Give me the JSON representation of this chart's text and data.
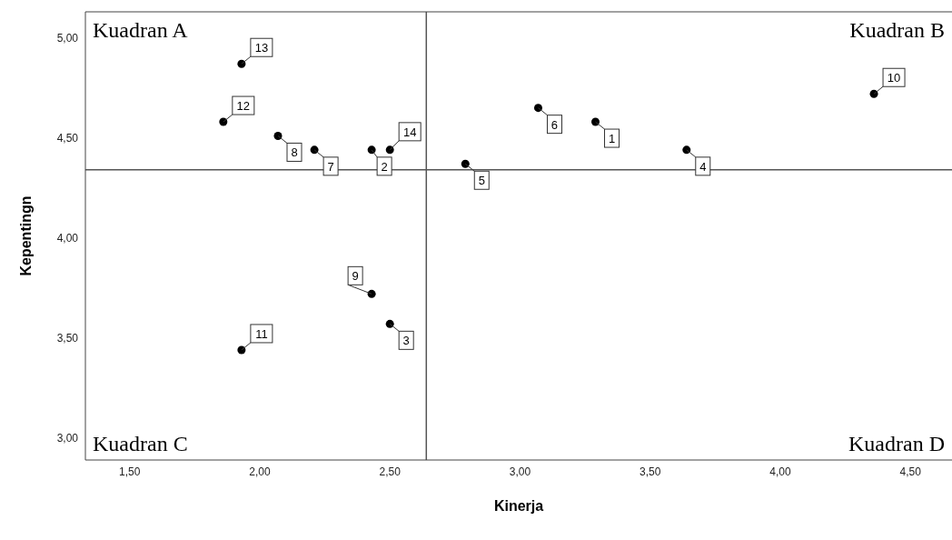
{
  "chart_data": {
    "type": "scatter",
    "xlabel": "Kinerja",
    "ylabel": "Kepentingn",
    "x": [
      3.29,
      2.43,
      2.5,
      3.64,
      2.79,
      3.07,
      2.21,
      2.07,
      2.43,
      4.36,
      1.93,
      1.86,
      1.93,
      2.5
    ],
    "values": [
      4.58,
      4.44,
      3.57,
      4.44,
      4.37,
      4.65,
      4.44,
      4.51,
      3.72,
      4.72,
      3.44,
      4.58,
      4.87,
      4.44
    ],
    "color": "#000000",
    "marker": "circle",
    "grid": false,
    "legend": false,
    "xlim": [
      1.33,
      4.66
    ],
    "ylim": [
      2.89,
      5.13
    ],
    "xticks": [
      {
        "value": 1.5,
        "label": "1,50"
      },
      {
        "value": 2,
        "label": "2,00"
      },
      {
        "value": 2.5,
        "label": "2,50"
      },
      {
        "value": 3,
        "label": "3,00"
      },
      {
        "value": 3.5,
        "label": "3,50"
      },
      {
        "value": 4,
        "label": "4,00"
      },
      {
        "value": 4.5,
        "label": "4,50"
      }
    ],
    "yticks": [
      {
        "value": 3,
        "label": "3,00"
      },
      {
        "value": 3.5,
        "label": "3,50"
      },
      {
        "value": 4,
        "label": "4,00"
      },
      {
        "value": 4.5,
        "label": "4,50"
      },
      {
        "value": 5,
        "label": "5,00"
      }
    ],
    "ref_lines": [
      {
        "axis": "x",
        "value": 2.64,
        "color": "#555555"
      },
      {
        "axis": "y",
        "value": 4.34,
        "color": "#555555"
      }
    ],
    "annotations": [
      "Kuadran A",
      "Kuadran B",
      "Kuadran C",
      "Kuadran D",
      {
        "text": "1",
        "x": 3.29,
        "y": 4.58
      },
      {
        "text": "2",
        "x": 2.43,
        "y": 4.44
      },
      {
        "text": "3",
        "x": 2.5,
        "y": 3.57
      },
      {
        "text": "4",
        "x": 3.64,
        "y": 4.44
      },
      {
        "text": "5",
        "x": 2.79,
        "y": 4.37
      },
      {
        "text": "6",
        "x": 3.07,
        "y": 4.65
      },
      {
        "text": "7",
        "x": 2.21,
        "y": 4.44
      },
      {
        "text": "8",
        "x": 2.07,
        "y": 4.51
      },
      {
        "text": "9",
        "x": 2.43,
        "y": 3.72
      },
      {
        "text": "10",
        "x": 4.36,
        "y": 4.72
      },
      {
        "text": "11",
        "x": 1.93,
        "y": 3.44
      },
      {
        "text": "12",
        "x": 1.86,
        "y": 4.58
      },
      {
        "text": "13",
        "x": 1.93,
        "y": 4.87
      },
      {
        "text": "14",
        "x": 2.5,
        "y": 4.44
      }
    ]
  }
}
